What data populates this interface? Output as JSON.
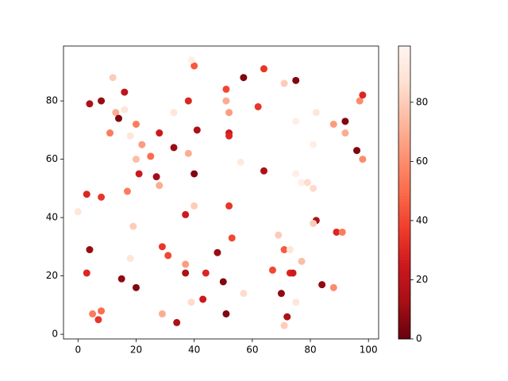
{
  "chart_data": {
    "type": "scatter",
    "colormap": "Reds_r",
    "x": [
      0,
      3,
      4,
      8,
      12,
      13,
      16,
      14,
      16,
      20,
      11,
      18,
      22,
      20,
      25,
      21,
      27,
      28,
      17,
      8,
      19,
      4,
      3,
      18,
      15,
      20,
      5,
      8,
      7,
      28,
      33,
      33,
      38,
      40,
      39,
      41,
      38,
      40,
      40,
      37,
      29,
      31,
      37,
      37,
      44,
      43,
      39,
      34,
      29,
      48,
      50,
      51,
      52,
      53,
      52,
      51,
      51,
      52,
      52,
      57,
      56,
      62,
      64,
      64,
      57,
      67,
      69,
      71,
      75,
      75,
      75,
      77,
      79,
      81,
      81,
      82,
      82,
      81,
      71,
      73,
      77,
      73,
      74,
      70,
      72,
      71,
      75,
      84,
      88,
      88,
      92,
      92,
      96,
      89,
      91,
      97,
      98,
      98
    ],
    "y": [
      42,
      48,
      79,
      80,
      88,
      76,
      83,
      74,
      77,
      72,
      69,
      68,
      65,
      60,
      61,
      55,
      54,
      51,
      49,
      47,
      37,
      29,
      21,
      26,
      19,
      16,
      7,
      8,
      5,
      69,
      64,
      76,
      80,
      92,
      94,
      70,
      62,
      55,
      44,
      41,
      30,
      27,
      24,
      21,
      21,
      12,
      11,
      4,
      7,
      28,
      18,
      7,
      44,
      33,
      76,
      84,
      80,
      69,
      68,
      88,
      59,
      78,
      91,
      56,
      14,
      22,
      34,
      86,
      87,
      73,
      55,
      52,
      52,
      50,
      65,
      76,
      39,
      38,
      29,
      29,
      25,
      21,
      21,
      14,
      6,
      3,
      11,
      17,
      16,
      72,
      73,
      69,
      63,
      35,
      35,
      80,
      82,
      60
    ],
    "values": [
      90,
      30,
      15,
      10,
      80,
      70,
      20,
      5,
      90,
      55,
      55,
      90,
      65,
      75,
      50,
      25,
      12,
      70,
      55,
      35,
      80,
      10,
      30,
      90,
      8,
      5,
      55,
      50,
      35,
      25,
      10,
      90,
      30,
      45,
      95,
      15,
      70,
      5,
      80,
      25,
      35,
      40,
      65,
      15,
      30,
      25,
      85,
      15,
      70,
      10,
      5,
      5,
      35,
      40,
      65,
      40,
      70,
      25,
      30,
      5,
      92,
      35,
      35,
      15,
      85,
      40,
      80,
      80,
      5,
      95,
      95,
      95,
      85,
      85,
      95,
      90,
      15,
      80,
      45,
      90,
      75,
      30,
      25,
      8,
      15,
      80,
      90,
      8,
      60,
      65,
      5,
      70,
      5,
      30,
      55,
      60,
      30,
      60
    ],
    "xlim": [
      -5,
      103.5
    ],
    "ylim": [
      -1.6,
      98.8
    ],
    "xticks": [
      0,
      20,
      40,
      60,
      80,
      100
    ],
    "yticks": [
      0,
      20,
      40,
      60,
      80
    ],
    "clim": [
      0,
      99
    ],
    "cticks": [
      0,
      20,
      40,
      60,
      80
    ]
  }
}
